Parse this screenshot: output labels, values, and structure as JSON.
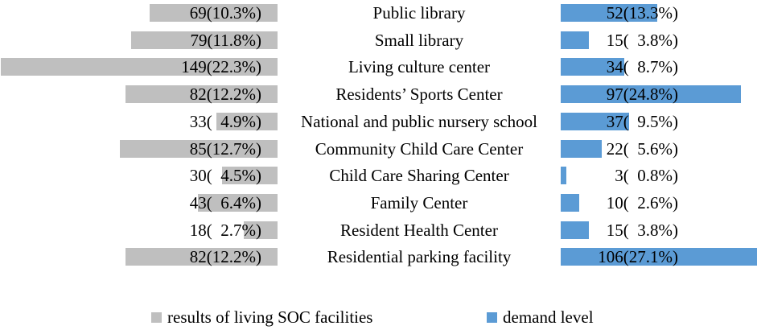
{
  "chart_data": {
    "type": "bar",
    "variant": "diverging-horizontal",
    "title": "",
    "grid": false,
    "legend_position": "bottom",
    "categories": [
      "Public library",
      "Small library",
      "Living culture center",
      "Residents’ Sports Center",
      "National and public nursery school",
      "Community Child Care Center",
      "Child Care Sharing Center",
      "Family Center",
      "Resident Health Center",
      "Residential parking facility"
    ],
    "series": [
      {
        "name": "results of living SOC facilities",
        "side": "left",
        "color": "#bfbfbf",
        "values": [
          69,
          79,
          149,
          82,
          33,
          85,
          30,
          43,
          18,
          82
        ],
        "percents": [
          10.3,
          11.8,
          22.3,
          12.2,
          4.9,
          12.7,
          4.5,
          6.4,
          2.7,
          12.2
        ],
        "labels": [
          "69(10.3%)",
          "79(11.8%)",
          "149(22.3%)",
          "82(12.2%)",
          "33(  4.9%)",
          "85(12.7%)",
          "30(  4.5%)",
          "43(  6.4%)",
          "18(  2.7%)",
          "82(12.2%)"
        ]
      },
      {
        "name": "demand level",
        "side": "right",
        "color": "#5b9bd5",
        "values": [
          52,
          15,
          34,
          97,
          37,
          22,
          3,
          10,
          15,
          106
        ],
        "percents": [
          13.3,
          3.8,
          8.7,
          24.8,
          9.5,
          5.6,
          0.8,
          2.6,
          3.8,
          27.1
        ],
        "labels": [
          "52(13.3%)",
          "15(  3.8%)",
          "34(  8.7%)",
          "97(24.8%)",
          "37(  9.5%)",
          "22(  5.6%)",
          "3(  0.8%)",
          "10(  2.6%)",
          "15(  3.8%)",
          "106(27.1%)"
        ]
      }
    ]
  },
  "text_color": "#000000",
  "background_color": "#ffffff"
}
